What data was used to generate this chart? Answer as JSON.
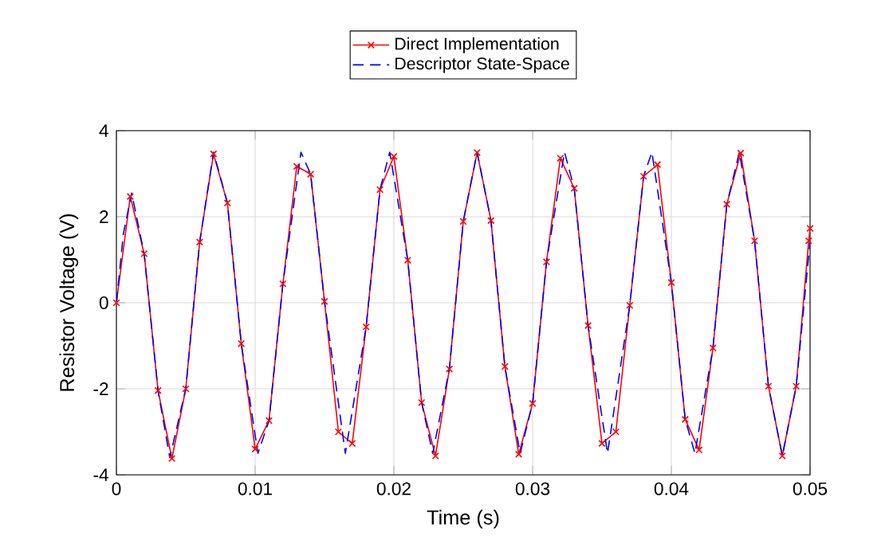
{
  "chart_data": {
    "type": "line",
    "xlabel": "Time (s)",
    "ylabel": "Resistor Voltage (V)",
    "xlim": [
      0,
      0.05
    ],
    "ylim": [
      -4,
      4
    ],
    "xticks": [
      0,
      0.01,
      0.02,
      0.03,
      0.04,
      0.05
    ],
    "yticks": [
      -4,
      -2,
      0,
      2,
      4
    ],
    "grid": true,
    "legend": "top",
    "series": [
      {
        "name": "Direct Implementation",
        "color": "#ff0000",
        "marker": "cross",
        "line_style": "solid",
        "x": [
          0,
          0.001,
          0.002,
          0.003,
          0.004,
          0.005,
          0.006,
          0.007,
          0.008,
          0.009,
          0.01,
          0.011,
          0.012,
          0.013,
          0.014,
          0.015,
          0.016,
          0.017,
          0.018,
          0.019,
          0.02,
          0.021,
          0.022,
          0.023,
          0.024,
          0.025,
          0.026,
          0.027,
          0.028,
          0.029,
          0.03,
          0.031,
          0.032,
          0.033,
          0.034,
          0.035,
          0.036,
          0.037,
          0.038,
          0.039,
          0.04,
          0.041,
          0.042,
          0.043,
          0.044,
          0.045,
          0.046,
          0.047,
          0.048,
          0.049,
          0.0499,
          0.05
        ],
        "values": [
          0,
          2.47,
          1.14,
          -2.04,
          -3.62,
          -2.0,
          1.41,
          3.46,
          2.32,
          -0.95,
          -3.4,
          -2.74,
          0.44,
          3.17,
          2.99,
          0.03,
          -3.0,
          -3.27,
          -0.56,
          2.63,
          3.4,
          0.99,
          -2.32,
          -3.56,
          -1.54,
          1.89,
          3.49,
          1.91,
          -1.48,
          -3.52,
          -2.34,
          0.95,
          3.36,
          2.66,
          -0.53,
          -3.27,
          -3.0,
          -0.06,
          2.94,
          3.21,
          0.47,
          -2.71,
          -3.42,
          -1.05,
          2.29,
          3.48,
          1.44,
          -1.94,
          -3.56,
          -1.94,
          1.44,
          1.73
        ]
      },
      {
        "name": "Descriptor State-Space",
        "color": "#0000ff",
        "marker": "none",
        "line_style": "dashed",
        "x": [
          0,
          0.0005,
          0.0011,
          0.002,
          0.003,
          0.00385,
          0.005,
          0.006,
          0.007,
          0.008,
          0.009,
          0.0102,
          0.011,
          0.012,
          0.0133,
          0.014,
          0.015,
          0.0165,
          0.018,
          0.019,
          0.0197,
          0.021,
          0.022,
          0.0228,
          0.024,
          0.025,
          0.026,
          0.027,
          0.028,
          0.0291,
          0.03,
          0.031,
          0.0323,
          0.033,
          0.034,
          0.0354,
          0.037,
          0.038,
          0.0386,
          0.04,
          0.041,
          0.0417,
          0.043,
          0.044,
          0.0449,
          0.046,
          0.047,
          0.048,
          0.049,
          0.05
        ],
        "values": [
          0,
          1.6,
          2.55,
          1.14,
          -2.04,
          -3.6,
          -2.0,
          1.41,
          3.5,
          2.32,
          -0.95,
          -3.5,
          -2.74,
          0.44,
          3.5,
          2.99,
          0.03,
          -3.5,
          -0.56,
          2.63,
          3.5,
          0.99,
          -2.32,
          -3.5,
          -1.54,
          1.89,
          3.5,
          1.91,
          -1.48,
          -3.5,
          -2.34,
          0.95,
          3.5,
          2.66,
          -0.53,
          -3.5,
          -0.06,
          2.94,
          3.5,
          0.47,
          -2.71,
          -3.5,
          -1.05,
          2.29,
          3.5,
          1.44,
          -1.94,
          -3.56,
          -1.94,
          1.44
        ]
      }
    ]
  }
}
